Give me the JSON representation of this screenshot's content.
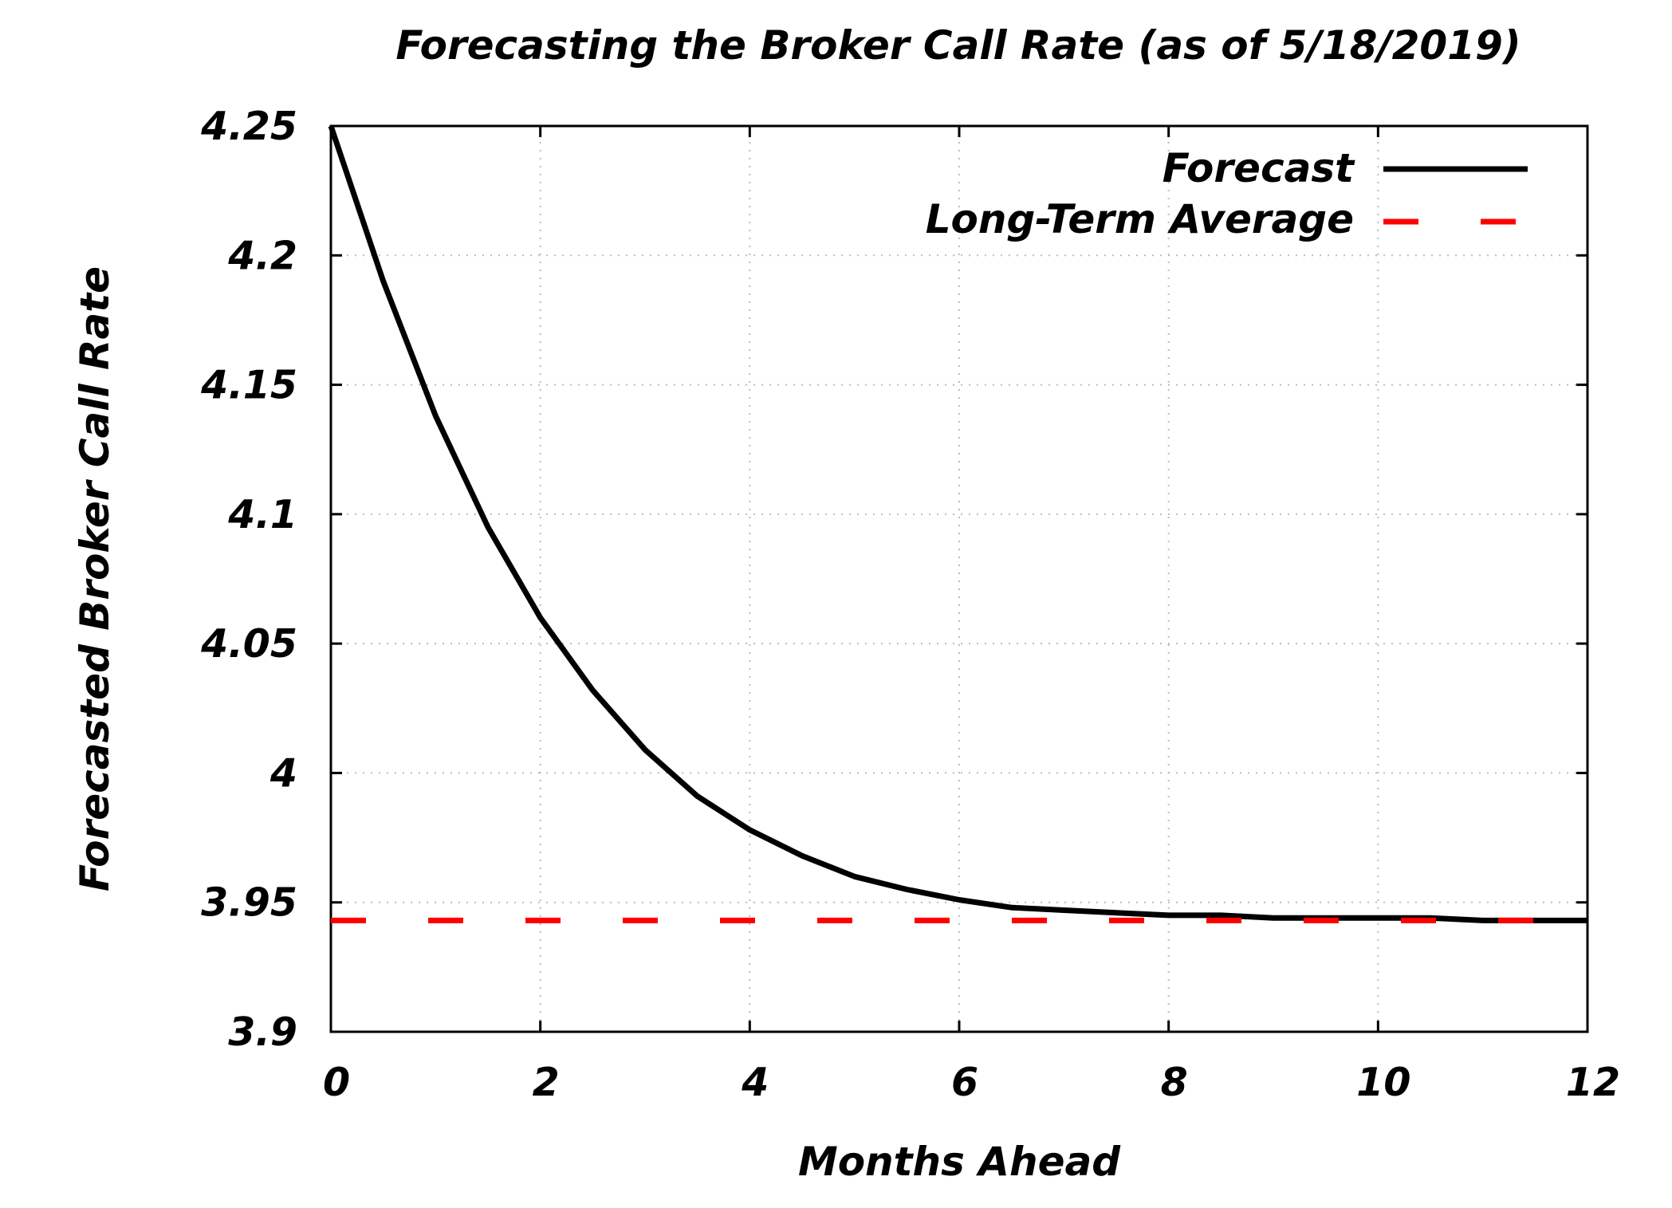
{
  "chart_data": {
    "type": "line",
    "title": "Forecasting the Broker Call Rate (as of 5/18/2019)",
    "xlabel": "Months Ahead",
    "ylabel": "Forecasted Broker Call Rate",
    "xlim": [
      0,
      12
    ],
    "ylim": [
      3.9,
      4.25
    ],
    "xticks": [
      "0",
      "2",
      "4",
      "6",
      "8",
      "10",
      "12"
    ],
    "yticks": [
      "3.9",
      "3.95",
      "4",
      "4.05",
      "4.1",
      "4.15",
      "4.2",
      "4.25"
    ],
    "grid": true,
    "legend_position": "top-right",
    "series": [
      {
        "name": "Forecast",
        "color": "#000000",
        "style": "solid",
        "x": [
          0,
          0.5,
          1,
          1.5,
          2,
          2.5,
          3,
          3.5,
          4,
          4.5,
          5,
          5.5,
          6,
          6.5,
          7,
          7.5,
          8,
          8.5,
          9,
          9.5,
          10,
          10.5,
          11,
          11.5,
          12
        ],
        "y": [
          4.25,
          4.19,
          4.138,
          4.095,
          4.06,
          4.032,
          4.009,
          3.991,
          3.978,
          3.968,
          3.96,
          3.955,
          3.951,
          3.948,
          3.947,
          3.946,
          3.945,
          3.945,
          3.944,
          3.944,
          3.944,
          3.944,
          3.943,
          3.943,
          3.943
        ]
      },
      {
        "name": "Long-Term Average",
        "color": "#ff0000",
        "style": "dashed",
        "x": [
          0,
          12
        ],
        "y": [
          3.943,
          3.943
        ]
      }
    ]
  }
}
